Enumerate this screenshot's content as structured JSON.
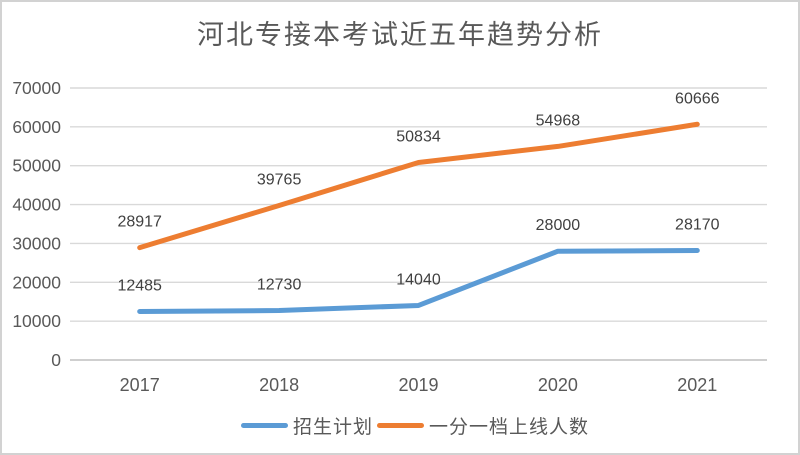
{
  "palette": {
    "series_blue": "#5B9BD5",
    "series_orange": "#ED7D31",
    "gridline": "#D9D9D9",
    "axis_line": "#BFBFBF",
    "tick_text": "#595959",
    "data_label_text": "#404040",
    "title_text": "#595959",
    "frame_border": "#D2D2D2"
  },
  "chart_data": {
    "type": "line",
    "title": "河北专接本考试近五年趋势分析",
    "categories": [
      "2017",
      "2018",
      "2019",
      "2020",
      "2021"
    ],
    "series": [
      {
        "name": "招生计划",
        "color": "#5B9BD5",
        "values": [
          12485,
          12730,
          14040,
          28000,
          28170
        ]
      },
      {
        "name": "一分一档上线人数",
        "color": "#ED7D31",
        "values": [
          28917,
          39765,
          50834,
          54968,
          60666
        ]
      }
    ],
    "xlabel": "",
    "ylabel": "",
    "ylim": [
      0,
      70000
    ],
    "ytick_interval": 10000,
    "yticks": [
      "0",
      "10000",
      "20000",
      "30000",
      "40000",
      "50000",
      "60000",
      "70000"
    ],
    "grid": true,
    "legend_position": "bottom",
    "data_labels": true
  }
}
